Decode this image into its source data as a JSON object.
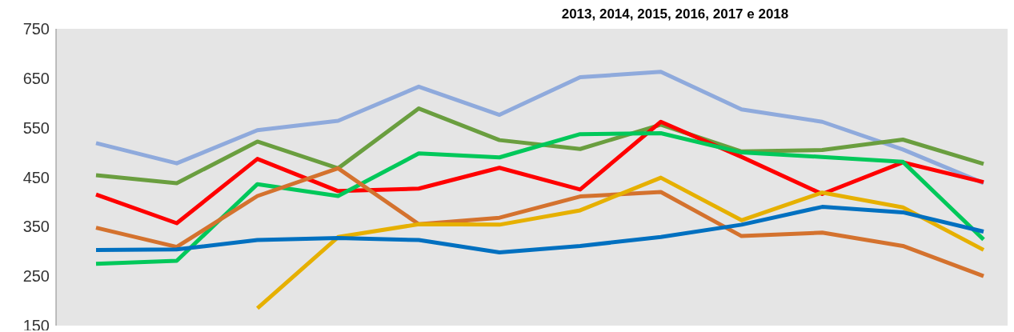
{
  "chart_data": {
    "type": "line",
    "title": "2013, 2014, 2015, 2016, 2017 e 2018",
    "categories": [
      null,
      null,
      null,
      null,
      null,
      null,
      null,
      null,
      null,
      null,
      null,
      null
    ],
    "series": [
      {
        "color": "#8faadc",
        "values": [
          519,
          478,
          545,
          564,
          633,
          576,
          652,
          663,
          587,
          562,
          506,
          438
        ]
      },
      {
        "color": "#6a9e3f",
        "values": [
          454,
          438,
          522,
          468,
          589,
          525,
          507,
          556,
          502,
          505,
          526,
          477
        ]
      },
      {
        "color": "#ff0000",
        "values": [
          415,
          357,
          487,
          422,
          427,
          469,
          425,
          562,
          491,
          416,
          480,
          440
        ]
      },
      {
        "color": "#00c85a",
        "values": [
          275,
          281,
          436,
          412,
          498,
          490,
          537,
          539,
          500,
          491,
          481,
          324
        ]
      },
      {
        "color": "#d4722e",
        "values": [
          348,
          309,
          412,
          468,
          355,
          368,
          411,
          420,
          331,
          338,
          311,
          250
        ]
      },
      {
        "color": "#e6b000",
        "values": [
          null,
          null,
          185,
          329,
          355,
          354,
          383,
          449,
          363,
          419,
          389,
          303
        ]
      },
      {
        "color": "#0070c0",
        "values": [
          303,
          304,
          323,
          327,
          323,
          298,
          311,
          329,
          354,
          390,
          379,
          340
        ]
      }
    ],
    "ylim": [
      150,
      750
    ],
    "yticks": [
      150,
      250,
      350,
      450,
      550,
      650,
      750
    ],
    "grid": false,
    "legend": false,
    "marker": "none",
    "line_style": "solid"
  }
}
